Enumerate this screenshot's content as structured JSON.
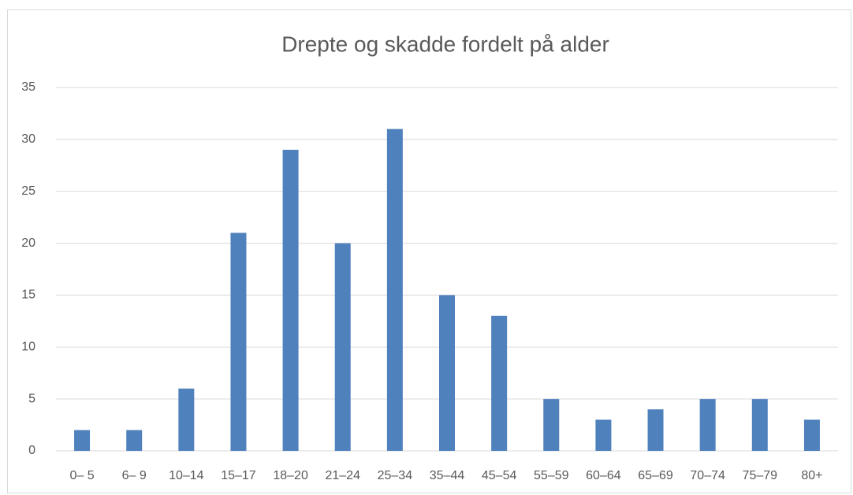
{
  "chart_data": {
    "type": "bar",
    "title": "Drepte og skadde fordelt på alder",
    "categories": [
      "0– 5",
      "6– 9",
      "10–14",
      "15–17",
      "18–20",
      "21–24",
      "25–34",
      "35–44",
      "45–54",
      "55–59",
      "60–64",
      "65–69",
      "70–74",
      "75–79",
      "80+"
    ],
    "values": [
      2,
      2,
      6,
      21,
      29,
      20,
      31,
      15,
      13,
      5,
      3,
      4,
      5,
      5,
      3
    ],
    "color": "#4f81bd",
    "ylim": [
      0,
      35
    ],
    "yticks": [
      0,
      5,
      10,
      15,
      20,
      25,
      30,
      35
    ],
    "grid": true
  }
}
